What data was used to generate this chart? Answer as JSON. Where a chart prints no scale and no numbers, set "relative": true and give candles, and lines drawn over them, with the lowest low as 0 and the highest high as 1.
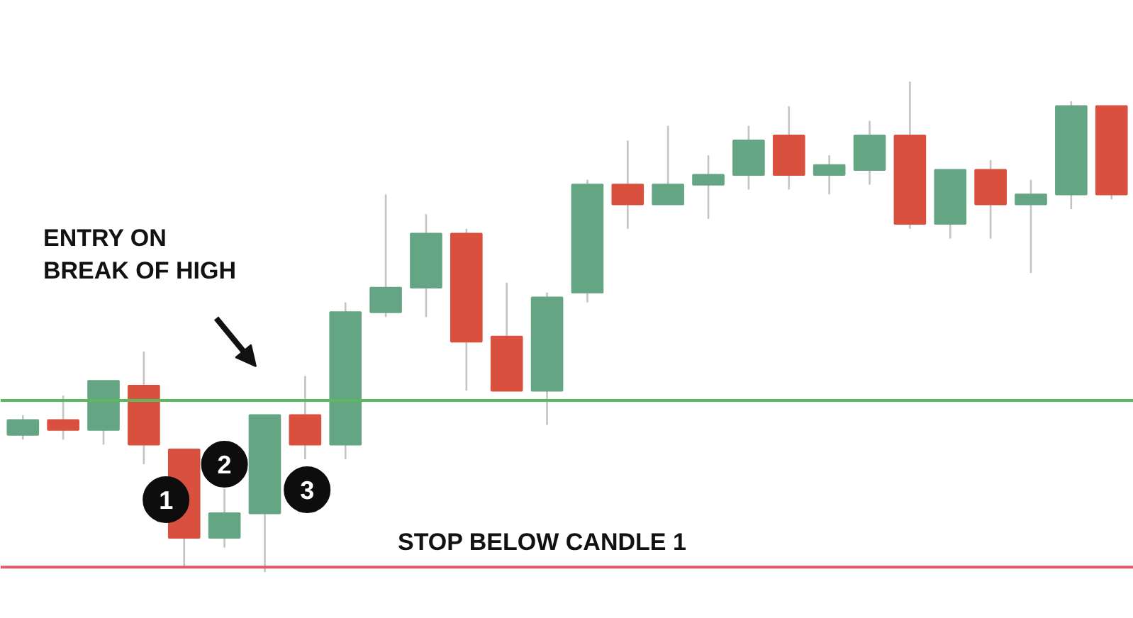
{
  "chart_data": {
    "type": "candlestick",
    "relative": true,
    "tick_labels": false,
    "grid": false,
    "categories": [
      null,
      null,
      null,
      null,
      null,
      null,
      null,
      null,
      null,
      null,
      null,
      null,
      null,
      null,
      null,
      null,
      null,
      null,
      null,
      null,
      null,
      null,
      null,
      null,
      null,
      null,
      null,
      null
    ],
    "ohlc": [
      [
        0.28,
        0.32,
        0.27,
        0.31
      ],
      [
        0.31,
        0.36,
        0.27,
        0.29
      ],
      [
        0.29,
        0.39,
        0.26,
        0.39
      ],
      [
        0.38,
        0.45,
        0.22,
        0.26
      ],
      [
        0.25,
        0.25,
        0.01,
        0.07
      ],
      [
        0.07,
        0.17,
        0.05,
        0.12
      ],
      [
        0.12,
        0.32,
        0.0,
        0.32
      ],
      [
        0.32,
        0.4,
        0.23,
        0.26
      ],
      [
        0.26,
        0.55,
        0.23,
        0.53
      ],
      [
        0.53,
        0.77,
        0.52,
        0.58
      ],
      [
        0.58,
        0.73,
        0.52,
        0.69
      ],
      [
        0.69,
        0.7,
        0.37,
        0.47
      ],
      [
        0.48,
        0.59,
        0.37,
        0.37
      ],
      [
        0.37,
        0.57,
        0.3,
        0.56
      ],
      [
        0.57,
        0.8,
        0.55,
        0.79
      ],
      [
        0.79,
        0.88,
        0.7,
        0.75
      ],
      [
        0.75,
        0.91,
        0.75,
        0.79
      ],
      [
        0.79,
        0.85,
        0.72,
        0.81
      ],
      [
        0.81,
        0.91,
        0.78,
        0.88
      ],
      [
        0.89,
        0.95,
        0.78,
        0.81
      ],
      [
        0.81,
        0.85,
        0.77,
        0.83
      ],
      [
        0.82,
        0.92,
        0.79,
        0.89
      ],
      [
        0.89,
        1.0,
        0.7,
        0.71
      ],
      [
        0.71,
        0.82,
        0.68,
        0.82
      ],
      [
        0.82,
        0.84,
        0.68,
        0.75
      ],
      [
        0.75,
        0.8,
        0.61,
        0.77
      ],
      [
        0.77,
        0.96,
        0.74,
        0.95
      ],
      [
        0.95,
        0.95,
        0.76,
        0.77
      ]
    ],
    "colors": [
      "#64a584",
      "#d9503f",
      "#64a584",
      "#d9503f",
      "#d9503f",
      "#64a584",
      "#64a584",
      "#d9503f",
      "#64a584",
      "#64a584",
      "#64a584",
      "#d9503f",
      "#d9503f",
      "#64a584",
      "#64a584",
      "#d9503f",
      "#64a584",
      "#64a584",
      "#64a584",
      "#d9503f",
      "#64a584",
      "#64a584",
      "#d9503f",
      "#64a584",
      "#d9503f",
      "#64a584",
      "#64a584",
      "#d9503f"
    ],
    "ref_lines": [
      {
        "axis": "y",
        "value": 0.35,
        "label": null,
        "color": "#5cb85c"
      },
      {
        "axis": "y",
        "value": 0.01,
        "label": "STOP BELOW CANDLE 1",
        "color": "#e05a6a"
      }
    ],
    "annotations": [
      "ENTRY ON\nBREAK OF HIGH",
      "1",
      "2",
      "3"
    ]
  }
}
